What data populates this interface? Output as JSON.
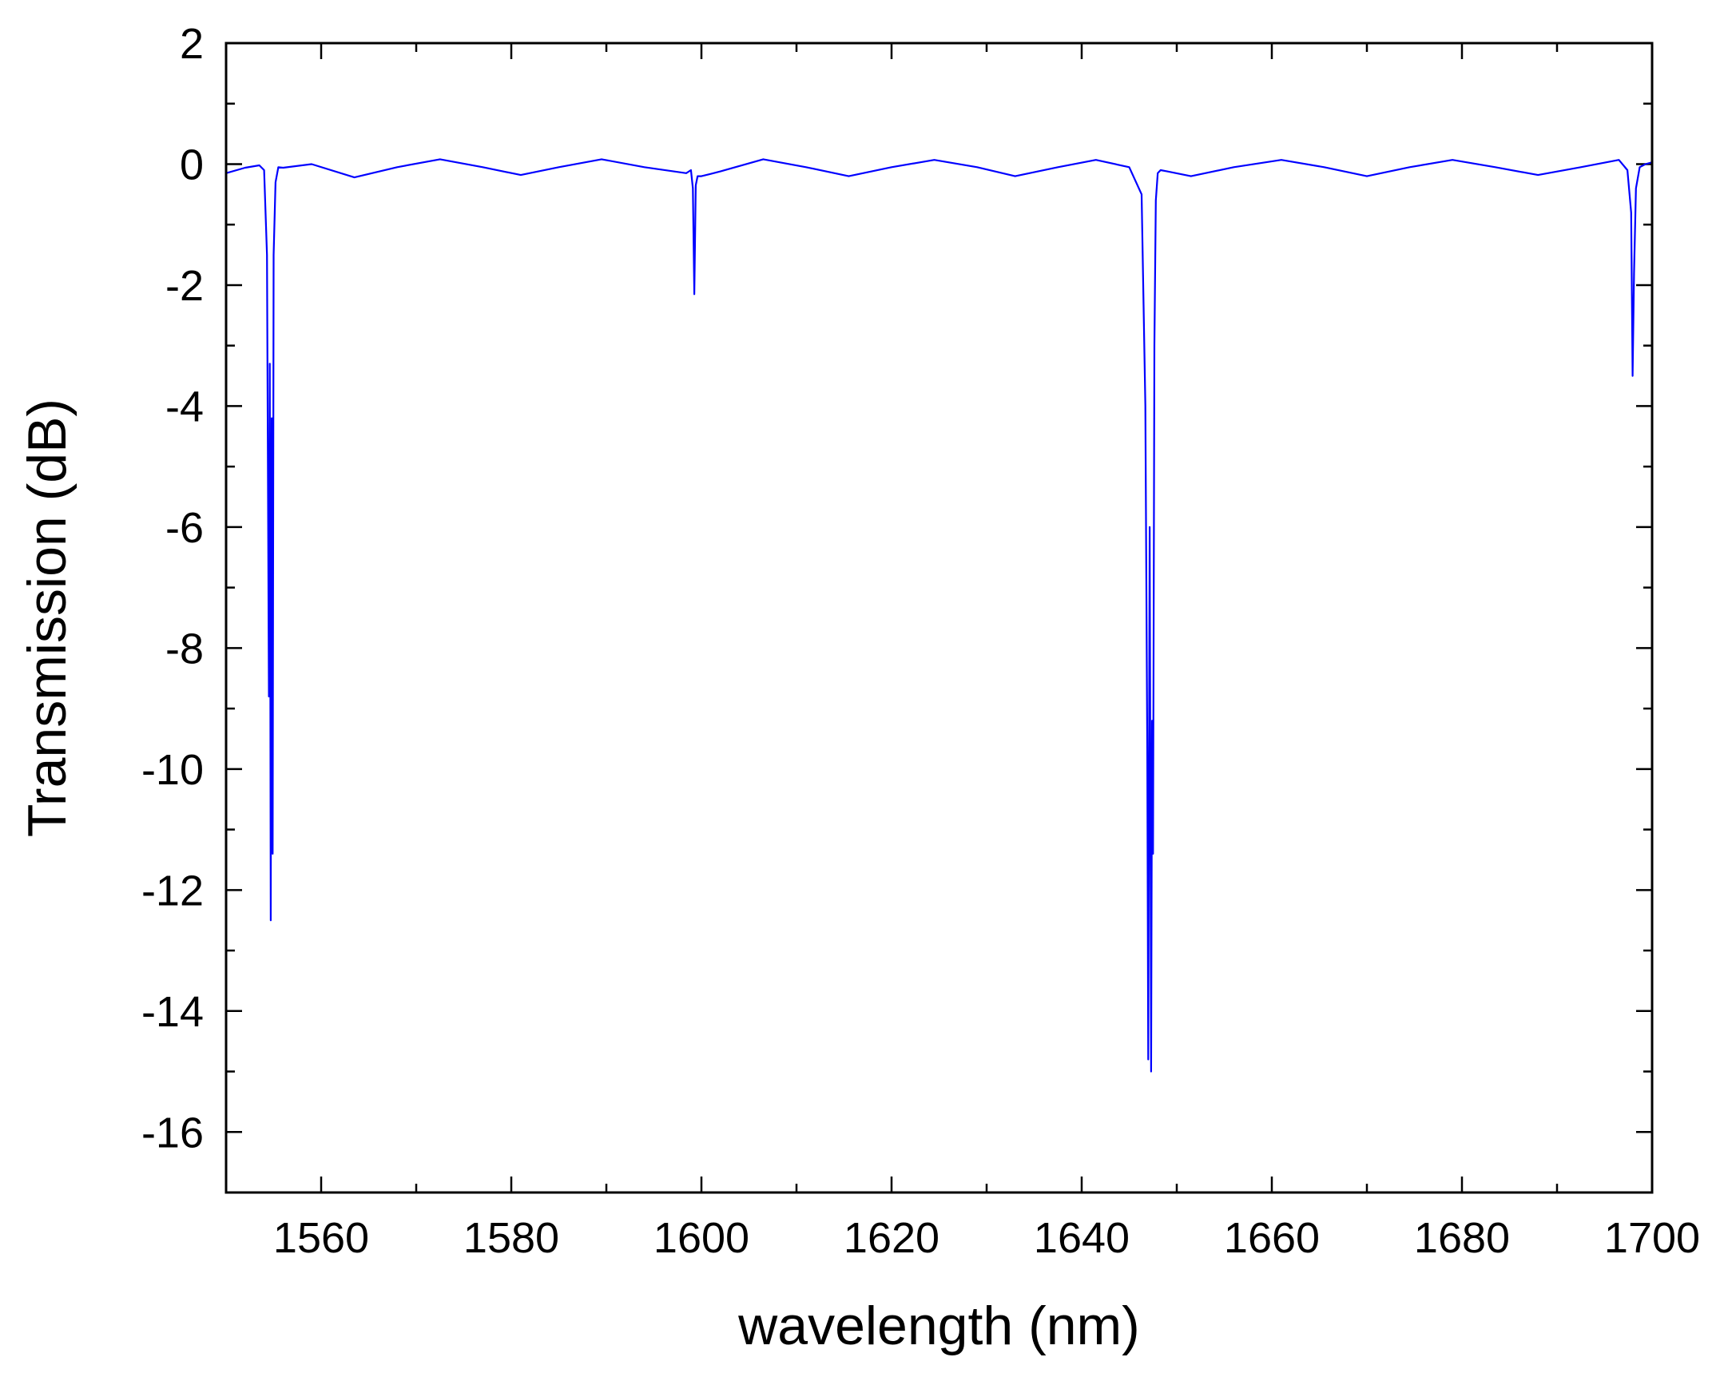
{
  "chart_data": {
    "type": "line",
    "title": "",
    "xlabel": "wavelength (nm)",
    "ylabel": "Transmission (dB)",
    "xlim": [
      1550,
      1700
    ],
    "ylim": [
      -17,
      2
    ],
    "x_ticks": [
      1560,
      1580,
      1600,
      1620,
      1640,
      1660,
      1680,
      1700
    ],
    "x_tick_labels": [
      "1560",
      "1580",
      "1600",
      "1620",
      "1640",
      "1660",
      "1680",
      "1700"
    ],
    "y_ticks": [
      2,
      0,
      -2,
      -4,
      -6,
      -8,
      -10,
      -12,
      -14,
      -16
    ],
    "y_tick_labels": [
      "2",
      "0",
      "-2",
      "-4",
      "-6",
      "-8",
      "-10",
      "-12",
      "-14",
      "-16"
    ],
    "grid": false,
    "legend": "none",
    "series": [
      {
        "color": "#0000ff",
        "x": [
          1550,
          1552,
          1553.5,
          1554.0,
          1554.3,
          1554.5,
          1554.6,
          1554.7,
          1554.8,
          1554.9,
          1555.0,
          1555.2,
          1555.5,
          1556,
          1559,
          1563.5,
          1568,
          1572.5,
          1577,
          1581,
          1585,
          1589.5,
          1594,
          1598.4,
          1598.9,
          1599.1,
          1599.25,
          1599.4,
          1599.6,
          1600,
          1602,
          1606.5,
          1611,
          1615.5,
          1620,
          1624.5,
          1629,
          1633,
          1637.5,
          1641.5,
          1645,
          1646.3,
          1646.7,
          1646.9,
          1647.0,
          1647.15,
          1647.3,
          1647.4,
          1647.5,
          1647.65,
          1647.8,
          1648.0,
          1648.3,
          1649,
          1651.5,
          1656,
          1661,
          1665.5,
          1670,
          1674.5,
          1679,
          1683.5,
          1688,
          1692.5,
          1696.5,
          1697.4,
          1697.8,
          1697.95,
          1698.1,
          1698.3,
          1698.7,
          1699.3,
          1700
        ],
        "y": [
          -0.15,
          -0.06,
          -0.02,
          -0.1,
          -1.5,
          -8.8,
          -3.3,
          -12.5,
          -4.2,
          -11.4,
          -1.5,
          -0.3,
          -0.05,
          -0.06,
          0.0,
          -0.22,
          -0.05,
          0.08,
          -0.05,
          -0.18,
          -0.05,
          0.08,
          -0.05,
          -0.15,
          -0.1,
          -0.4,
          -2.15,
          -0.35,
          -0.2,
          -0.2,
          -0.12,
          0.08,
          -0.05,
          -0.2,
          -0.05,
          0.07,
          -0.05,
          -0.2,
          -0.05,
          0.07,
          -0.05,
          -0.5,
          -4.0,
          -9.7,
          -14.8,
          -6.0,
          -15.0,
          -9.2,
          -11.4,
          -3.0,
          -0.6,
          -0.15,
          -0.1,
          -0.12,
          -0.2,
          -0.05,
          0.07,
          -0.05,
          -0.2,
          -0.05,
          0.07,
          -0.05,
          -0.18,
          -0.05,
          0.07,
          -0.1,
          -0.8,
          -3.5,
          -1.8,
          -0.4,
          -0.05,
          0.0,
          0.03
        ]
      }
    ]
  }
}
